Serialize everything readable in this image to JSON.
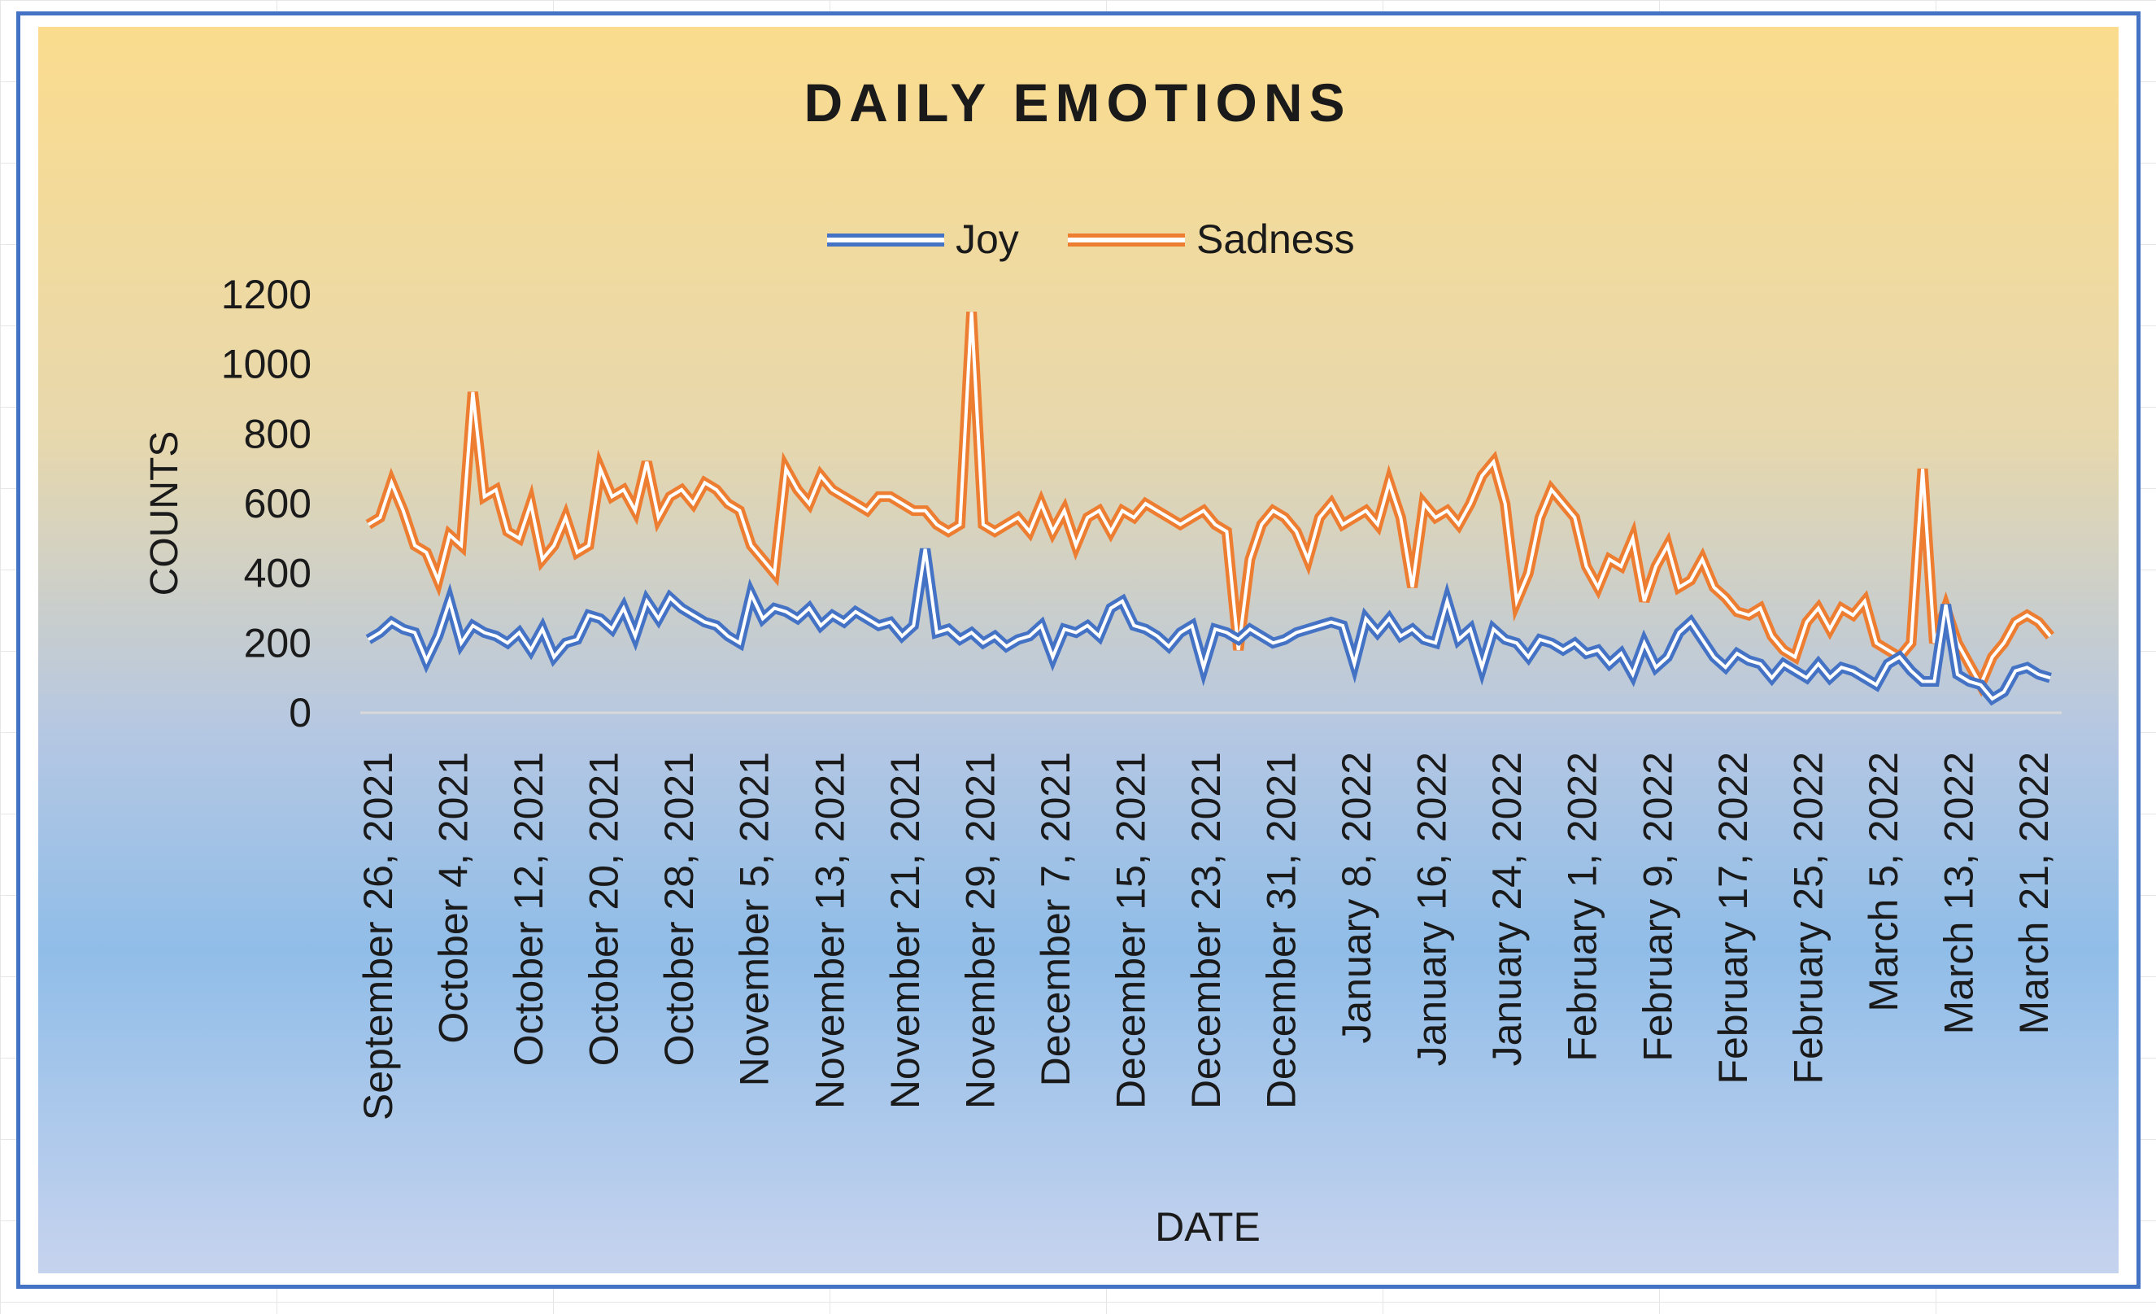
{
  "chart_data": {
    "type": "line",
    "title": "DAILY EMOTIONS",
    "xlabel": "DATE",
    "ylabel": "COUNTS",
    "ylim": [
      0,
      1200
    ],
    "yticks": [
      "0",
      "200",
      "400",
      "600",
      "800",
      "1000",
      "1200"
    ],
    "xticks": [
      "September 26, 2021",
      "October 4, 2021",
      "October 12, 2021",
      "October 20, 2021",
      "October 28, 2021",
      "November 5, 2021",
      "November 13, 2021",
      "November 21, 2021",
      "November 29, 2021",
      "December 7, 2021",
      "December 15, 2021",
      "December 23, 2021",
      "December 31, 2021",
      "January 8, 2022",
      "January 16, 2022",
      "January 24, 2022",
      "February 1, 2022",
      "February 9, 2022",
      "February 17, 2022",
      "February 25, 2022",
      "March 5, 2022",
      "March 13, 2022",
      "March 21, 2022"
    ],
    "legend": "top-center",
    "series": [
      {
        "name": "Joy",
        "color": "#4472c4",
        "values": [
          210,
          230,
          260,
          240,
          230,
          150,
          220,
          320,
          200,
          250,
          230,
          220,
          200,
          230,
          180,
          240,
          160,
          200,
          210,
          280,
          270,
          240,
          300,
          220,
          320,
          270,
          330,
          300,
          280,
          260,
          250,
          220,
          200,
          340,
          270,
          300,
          290,
          270,
          300,
          250,
          280,
          260,
          290,
          270,
          250,
          260,
          220,
          250,
          470,
          230,
          240,
          210,
          230,
          200,
          220,
          190,
          210,
          220,
          250,
          160,
          240,
          230,
          250,
          220,
          300,
          320,
          250,
          240,
          220,
          190,
          230,
          250,
          130,
          240,
          230,
          210,
          240,
          220,
          200,
          210,
          230,
          240,
          250,
          260,
          250,
          140,
          270,
          230,
          270,
          220,
          240,
          210,
          200,
          320,
          210,
          240,
          130,
          240,
          210,
          200,
          160,
          210,
          200,
          180,
          200,
          170,
          180,
          140,
          170,
          110,
          200,
          130,
          160,
          230,
          260,
          210,
          160,
          130,
          170,
          150,
          140,
          100,
          140,
          120,
          100,
          140,
          100,
          130,
          120,
          100,
          80,
          140,
          160,
          120,
          90,
          90,
          310,
          110,
          90,
          80,
          40,
          60,
          120,
          130,
          110,
          100
        ]
      },
      {
        "name": "Sadness",
        "color": "#ed7d31",
        "values": [
          540,
          560,
          660,
          580,
          480,
          460,
          380,
          510,
          480,
          920,
          620,
          640,
          520,
          500,
          600,
          440,
          480,
          560,
          460,
          480,
          700,
          620,
          640,
          580,
          720,
          560,
          620,
          640,
          600,
          660,
          640,
          600,
          580,
          480,
          440,
          400,
          700,
          640,
          600,
          680,
          640,
          620,
          600,
          580,
          620,
          620,
          600,
          580,
          580,
          540,
          520,
          540,
          1150,
          540,
          520,
          540,
          560,
          520,
          600,
          520,
          580,
          480,
          560,
          580,
          520,
          580,
          560,
          600,
          580,
          560,
          540,
          560,
          580,
          540,
          520,
          180,
          440,
          540,
          580,
          560,
          520,
          440,
          560,
          600,
          540,
          560,
          580,
          540,
          660,
          560,
          360,
          600,
          560,
          580,
          540,
          600,
          680,
          720,
          600,
          320,
          400,
          560,
          640,
          600,
          560,
          420,
          360,
          440,
          420,
          500,
          320,
          420,
          480,
          360,
          380,
          440,
          360,
          330,
          290,
          280,
          300,
          220,
          180,
          160,
          260,
          300,
          240,
          300,
          280,
          320,
          200,
          180,
          160,
          200,
          700,
          200,
          300,
          200,
          140,
          80,
          160,
          200,
          260,
          280,
          260,
          220
        ]
      }
    ]
  }
}
